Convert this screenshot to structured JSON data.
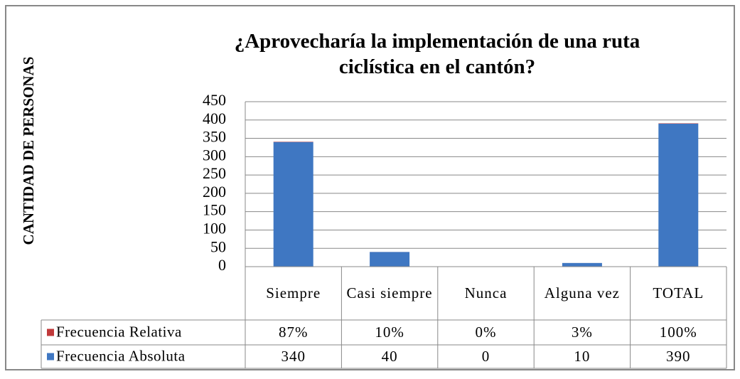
{
  "chart_data": {
    "type": "stacked-bar",
    "title": "¿Aprovecharía la implementación de una ruta ciclística en el cantón?",
    "y_label": "CANTIDAD DE PERSONAS",
    "categories": [
      "Siempre",
      "Casi siempre",
      "Nunca",
      "Alguna vez",
      "TOTAL"
    ],
    "series": [
      {
        "name": "Frecuencia Relativa",
        "color": "#c0393a",
        "values": [
          0.87,
          0.1,
          0,
          0.03,
          1
        ],
        "value_labels": [
          "87%",
          "10%",
          "0%",
          "3%",
          "100%"
        ]
      },
      {
        "name": "Frecuencia Absoluta",
        "color": "#3f77c2",
        "values": [
          340,
          40,
          0,
          10,
          390
        ]
      }
    ],
    "ylim": [
      0,
      450
    ],
    "yticks": [
      0,
      50,
      100,
      150,
      200,
      250,
      300,
      350,
      400,
      450
    ],
    "grid": true
  }
}
